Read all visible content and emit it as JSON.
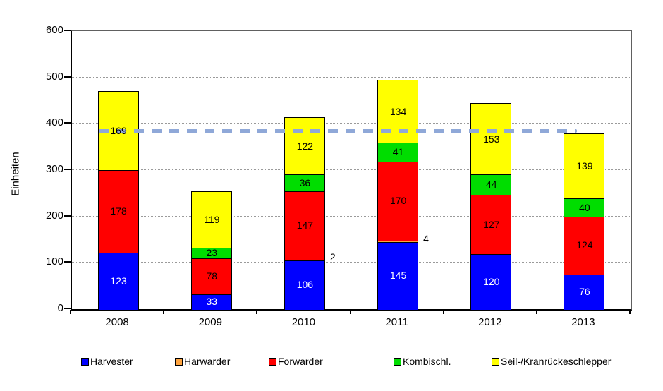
{
  "chart_data": {
    "type": "bar",
    "stacked": true,
    "title": "",
    "ylabel": "Einheiten",
    "xlabel": "",
    "ylim": [
      0,
      600
    ],
    "ytick_step": 100,
    "grid": "horizontal-dotted",
    "legend_position": "bottom",
    "categories": [
      "2008",
      "2009",
      "2010",
      "2011",
      "2012",
      "2013"
    ],
    "series": [
      {
        "name": "Harvester",
        "color": "#0000FF",
        "label_color": "#FFFFFF",
        "label_outside": false,
        "values": [
          123,
          33,
          106,
          145,
          120,
          76
        ]
      },
      {
        "name": "Harwarder",
        "color": "#FFA43F",
        "label_color": "#000000",
        "label_outside": true,
        "values": [
          0,
          0,
          2,
          4,
          0,
          0
        ]
      },
      {
        "name": "Forwarder",
        "color": "#FF0000",
        "label_color": "#000000",
        "label_outside": false,
        "values": [
          178,
          78,
          147,
          170,
          127,
          124
        ]
      },
      {
        "name": "Kombischl.",
        "color": "#00DD00",
        "label_color": "#000000",
        "label_outside": false,
        "values": [
          0,
          23,
          36,
          41,
          44,
          40
        ]
      },
      {
        "name": "Seil-/Kranrückeschlepper",
        "color": "#FFFF00",
        "label_color": "#000000",
        "label_outside": false,
        "values": [
          169,
          119,
          122,
          134,
          153,
          139
        ]
      }
    ],
    "totals": [
      470,
      253,
      413,
      494,
      444,
      379
    ],
    "reference_line": {
      "value": 385,
      "color": "#8FA8D8",
      "style": "dashed"
    }
  }
}
